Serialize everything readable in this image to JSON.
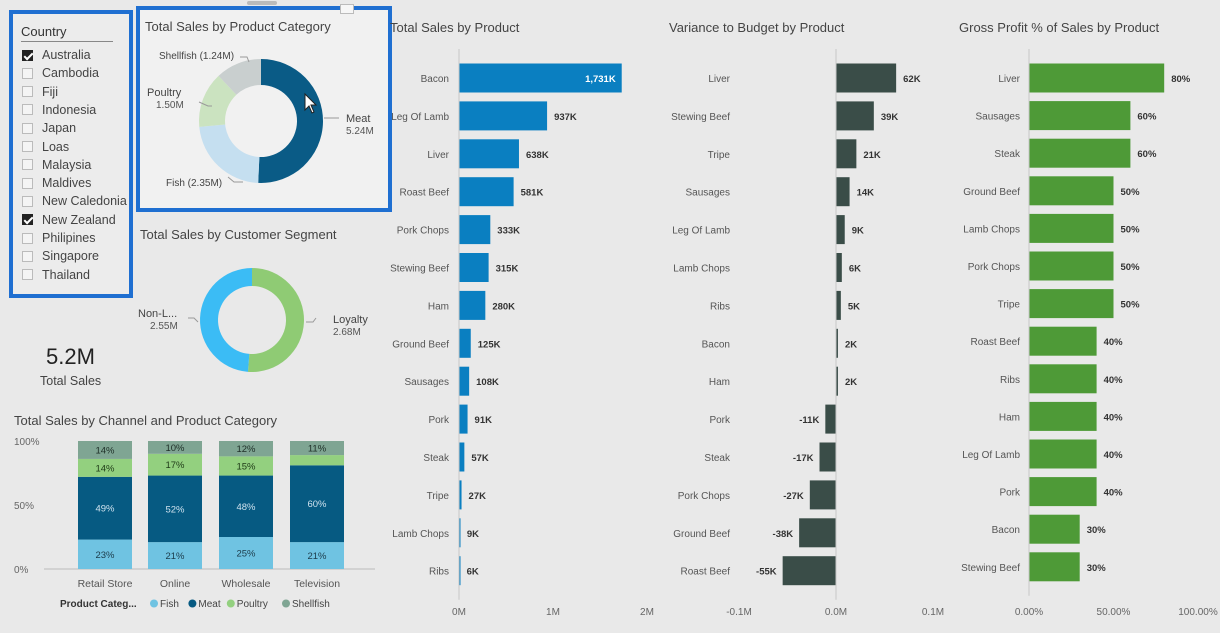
{
  "slicer": {
    "header": "Country",
    "items": [
      {
        "label": "Australia",
        "checked": true
      },
      {
        "label": "Cambodia",
        "checked": false
      },
      {
        "label": "Fiji",
        "checked": false
      },
      {
        "label": "Indonesia",
        "checked": false
      },
      {
        "label": "Japan",
        "checked": false
      },
      {
        "label": "Loas",
        "checked": false
      },
      {
        "label": "Malaysia",
        "checked": false
      },
      {
        "label": "Maldives",
        "checked": false
      },
      {
        "label": "New Caledonia",
        "checked": false
      },
      {
        "label": "New Zealand",
        "checked": true
      },
      {
        "label": "Philipines",
        "checked": false
      },
      {
        "label": "Singapore",
        "checked": false
      },
      {
        "label": "Thailand",
        "checked": false
      }
    ]
  },
  "kpi": {
    "value": "5.2M",
    "label": "Total Sales"
  },
  "colors": {
    "meat": "#0a5b86",
    "fish": "#c5dff0",
    "poultry": "#cbe3c0",
    "shellfish": "#c9cfcf",
    "loyalty": "#8fcb74",
    "nonloyalty": "#3bbcf5",
    "stack_meat": "#065a82",
    "stack_fish": "#6fc3e2",
    "stack_poultry": "#93d07f",
    "stack_shellfish": "#7fa593",
    "sales_bar": "#0a7fc1",
    "variance_bar": "#3a4d48",
    "gp_bar": "#4e9a37"
  },
  "chart_data": [
    {
      "id": "category_donut",
      "type": "pie",
      "title": "Total Sales by Product Category",
      "slices": [
        {
          "name": "Meat",
          "value": 5.24,
          "label": "5.24M"
        },
        {
          "name": "Fish",
          "value": 2.35,
          "label": "Fish (2.35M)"
        },
        {
          "name": "Poultry",
          "value": 1.5,
          "label": "1.50M"
        },
        {
          "name": "Shellfish",
          "value": 1.24,
          "label": "Shellfish (1.24M)"
        }
      ]
    },
    {
      "id": "segment_donut",
      "type": "pie",
      "title": "Total Sales by Customer Segment",
      "slices": [
        {
          "name": "Loyalty",
          "value": 2.68,
          "label": "2.68M"
        },
        {
          "name": "Non-L...",
          "value": 2.55,
          "label": "2.55M"
        }
      ]
    },
    {
      "id": "channel_stack",
      "type": "bar",
      "stacked": "percent",
      "title": "Total Sales by Channel and Product Category",
      "categories": [
        "Retail Store",
        "Online",
        "Wholesale",
        "Television"
      ],
      "series": [
        {
          "name": "Fish",
          "values": [
            23,
            21,
            25,
            21
          ],
          "labels": [
            "23%",
            "21%",
            "25%",
            "21%"
          ]
        },
        {
          "name": "Meat",
          "values": [
            49,
            52,
            48,
            60
          ],
          "labels": [
            "49%",
            "52%",
            "48%",
            "60%"
          ]
        },
        {
          "name": "Poultry",
          "values": [
            14,
            17,
            15,
            8
          ],
          "labels": [
            "14%",
            "17%",
            "15%",
            ""
          ]
        },
        {
          "name": "Shellfish",
          "values": [
            14,
            10,
            12,
            11
          ],
          "labels": [
            "14%",
            "10%",
            "12%",
            "11%"
          ]
        }
      ],
      "y_ticks": [
        "100%",
        "50%",
        "0%"
      ],
      "legend_title": "Product Categ...",
      "legend_position": "bottom-left"
    },
    {
      "id": "sales_by_product",
      "type": "bar",
      "orientation": "horizontal",
      "title": "Total Sales by Product",
      "categories": [
        "Bacon",
        "Leg Of Lamb",
        "Liver",
        "Roast Beef",
        "Pork Chops",
        "Stewing Beef",
        "Ham",
        "Ground Beef",
        "Sausages",
        "Pork",
        "Steak",
        "Tripe",
        "Lamb Chops",
        "Ribs"
      ],
      "values": [
        1731000,
        937000,
        638000,
        581000,
        333000,
        315000,
        280000,
        125000,
        108000,
        91000,
        57000,
        27000,
        9000,
        6000
      ],
      "labels": [
        "1,731K",
        "937K",
        "638K",
        "581K",
        "333K",
        "315K",
        "280K",
        "125K",
        "108K",
        "91K",
        "57K",
        "27K",
        "9K",
        "6K"
      ],
      "xlim": [
        0,
        2000000
      ],
      "x_ticks": [
        "0M",
        "1M",
        "2M"
      ]
    },
    {
      "id": "variance_by_product",
      "type": "bar",
      "orientation": "horizontal",
      "title": "Variance to Budget by Product",
      "categories": [
        "Liver",
        "Stewing Beef",
        "Tripe",
        "Sausages",
        "Leg Of Lamb",
        "Lamb Chops",
        "Ribs",
        "Bacon",
        "Ham",
        "Pork",
        "Steak",
        "Pork Chops",
        "Ground Beef",
        "Roast Beef"
      ],
      "values": [
        62000,
        39000,
        21000,
        14000,
        9000,
        6000,
        5000,
        2000,
        2000,
        -11000,
        -17000,
        -27000,
        -38000,
        -55000
      ],
      "labels": [
        "62K",
        "39K",
        "21K",
        "14K",
        "9K",
        "6K",
        "5K",
        "2K",
        "2K",
        "-11K",
        "-17K",
        "-27K",
        "-38K",
        "-55K"
      ],
      "xlim": [
        -100000,
        100000
      ],
      "x_ticks": [
        "-0.1M",
        "0.0M",
        "0.1M"
      ]
    },
    {
      "id": "gp_by_product",
      "type": "bar",
      "orientation": "horizontal",
      "title": "Gross Profit % of Sales by Product",
      "categories": [
        "Liver",
        "Sausages",
        "Steak",
        "Ground Beef",
        "Lamb Chops",
        "Pork Chops",
        "Tripe",
        "Roast Beef",
        "Ribs",
        "Ham",
        "Leg Of Lamb",
        "Pork",
        "Bacon",
        "Stewing Beef"
      ],
      "values": [
        80,
        60,
        60,
        50,
        50,
        50,
        50,
        40,
        40,
        40,
        40,
        40,
        30,
        30
      ],
      "labels": [
        "80%",
        "60%",
        "60%",
        "50%",
        "50%",
        "50%",
        "50%",
        "40%",
        "40%",
        "40%",
        "40%",
        "40%",
        "30%",
        "30%"
      ],
      "xlim": [
        0,
        100
      ],
      "x_ticks": [
        "0.00%",
        "50.00%",
        "100.00%"
      ]
    }
  ]
}
